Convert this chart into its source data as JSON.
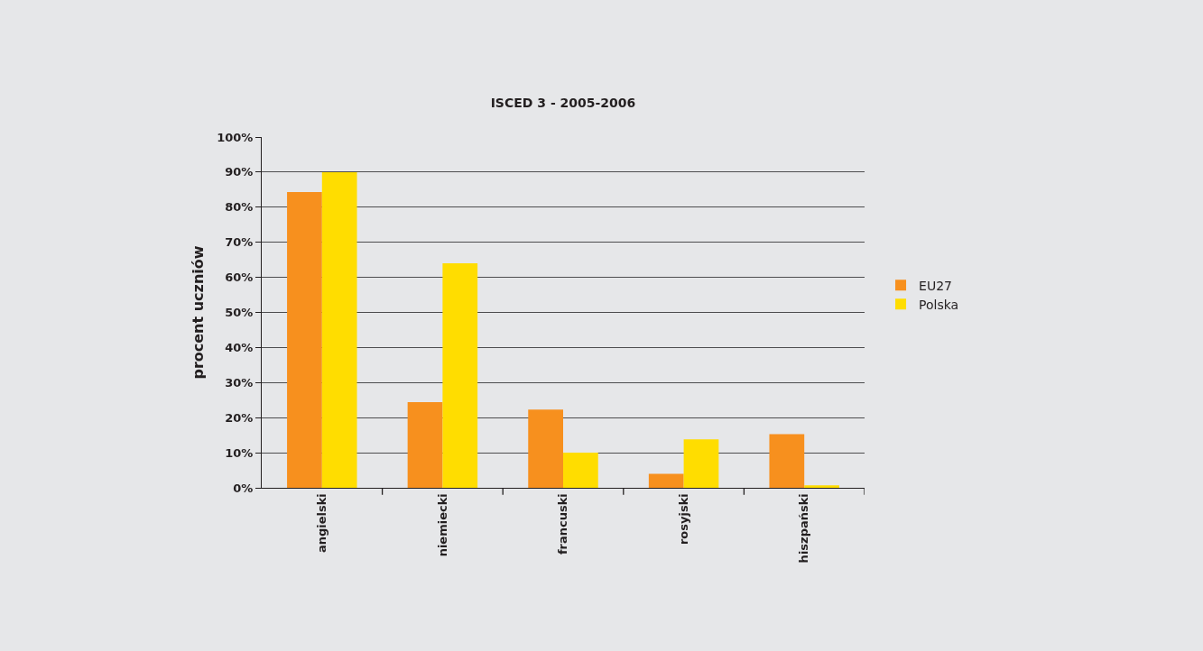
{
  "chart_data": {
    "type": "bar",
    "title": "ISCED 3 - 2005-2006",
    "ylabel": "procent uczniów",
    "categories": [
      "angielski",
      "niemiecki",
      "francuski",
      "rosyjski",
      "hiszpański"
    ],
    "series": [
      {
        "name": "EU27",
        "color": "#f7901e",
        "values": [
          84.3,
          24.4,
          22.3,
          4.0,
          15.3
        ]
      },
      {
        "name": "Polska",
        "color": "#ffdd00",
        "values": [
          90,
          64,
          10,
          13.8,
          0.7
        ]
      }
    ],
    "ylim": [
      0,
      100
    ],
    "yticks": [
      {
        "value": 0,
        "label": "0%"
      },
      {
        "value": 10,
        "label": "10%"
      },
      {
        "value": 20,
        "label": "20%"
      },
      {
        "value": 30,
        "label": "30%"
      },
      {
        "value": 40,
        "label": "40%"
      },
      {
        "value": 50,
        "label": "50%"
      },
      {
        "value": 60,
        "label": "60%"
      },
      {
        "value": 70,
        "label": "70%"
      },
      {
        "value": 80,
        "label": "80%"
      },
      {
        "value": 90,
        "label": "90%"
      },
      {
        "value": 100,
        "label": "100%"
      }
    ],
    "grid": "y",
    "legend": "right"
  }
}
